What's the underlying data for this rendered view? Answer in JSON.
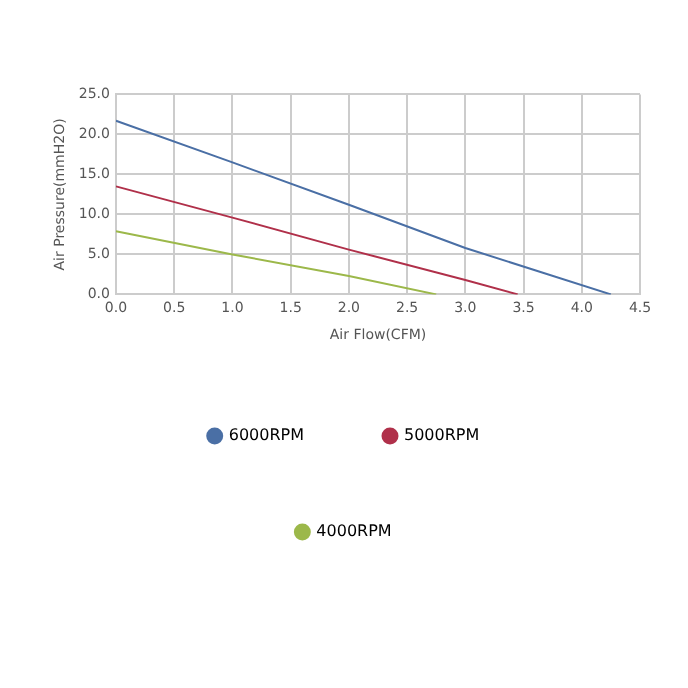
{
  "chart_data": {
    "type": "line",
    "xlabel": "Air Flow(CFM)",
    "ylabel": "Air Pressure(mmH2O)",
    "xlim": [
      0,
      4.5
    ],
    "ylim": [
      0,
      25
    ],
    "xticks": [
      {
        "value": 0,
        "label": "0.0"
      },
      {
        "value": 0.5,
        "label": "0.5"
      },
      {
        "value": 1,
        "label": "1.0"
      },
      {
        "value": 1.5,
        "label": "1.5"
      },
      {
        "value": 2,
        "label": "2.0"
      },
      {
        "value": 2.5,
        "label": "2.5"
      },
      {
        "value": 3,
        "label": "3.0"
      },
      {
        "value": 3.5,
        "label": "3.5"
      },
      {
        "value": 4,
        "label": "4.0"
      },
      {
        "value": 4.5,
        "label": "4.5"
      }
    ],
    "yticks": [
      {
        "value": 0,
        "label": "0.0"
      },
      {
        "value": 5,
        "label": "5.0"
      },
      {
        "value": 10,
        "label": "10.0"
      },
      {
        "value": 15,
        "label": "15.0"
      },
      {
        "value": 20,
        "label": "20.0"
      },
      {
        "value": 25,
        "label": "25.0"
      }
    ],
    "grid": true,
    "legend": "bottom",
    "marker": "none",
    "series": [
      {
        "name": "6000RPM",
        "color": "#4a6fa5",
        "x": [
          0,
          1,
          2,
          3,
          4.25
        ],
        "values": [
          21.7,
          16.5,
          11.2,
          5.8,
          0
        ]
      },
      {
        "name": "5000RPM",
        "color": "#b0304a",
        "x": [
          0,
          1,
          2,
          3,
          3.45
        ],
        "values": [
          13.5,
          9.6,
          5.6,
          1.8,
          0
        ]
      },
      {
        "name": "4000RPM",
        "color": "#9cb84a",
        "x": [
          0,
          1,
          2,
          2.75
        ],
        "values": [
          7.9,
          5.0,
          2.3,
          0
        ]
      }
    ]
  }
}
